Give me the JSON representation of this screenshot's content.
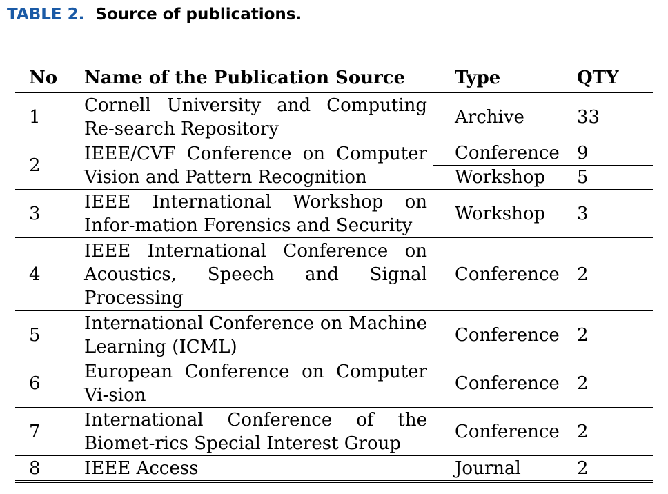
{
  "caption": {
    "label": "TABLE 2.",
    "title": "Source of publications."
  },
  "table": {
    "headers": {
      "no": "No",
      "name": "Name of the Publication Source",
      "type": "Type",
      "qty": "QTY"
    },
    "rows": [
      {
        "no": "1",
        "name": "Cornell University and Computing Re-search Repository",
        "type": "Archive",
        "qty": "33"
      },
      {
        "no": "2",
        "name": "IEEE/CVF Conference on Computer Vision and Pattern Recognition",
        "type": "Conference",
        "qty": "9",
        "type2": "Workshop",
        "qty2": "5"
      },
      {
        "no": "3",
        "name": "IEEE International Workshop on Infor-mation Forensics and Security",
        "type": "Workshop",
        "qty": "3"
      },
      {
        "no": "4",
        "name": "IEEE International Conference on Acoustics, Speech and Signal Processing",
        "type": "Conference",
        "qty": "2"
      },
      {
        "no": "5",
        "name": "International Conference on Machine Learning (ICML)",
        "type": "Conference",
        "qty": "2"
      },
      {
        "no": "6",
        "name": "European Conference on Computer Vi-sion",
        "type": "Conference",
        "qty": "2"
      },
      {
        "no": "7",
        "name": "International Conference of the Biomet-rics Special Interest Group",
        "type": "Conference",
        "qty": "2"
      },
      {
        "no": "8",
        "name": "IEEE Access",
        "type": "Journal",
        "qty": "2"
      }
    ]
  }
}
